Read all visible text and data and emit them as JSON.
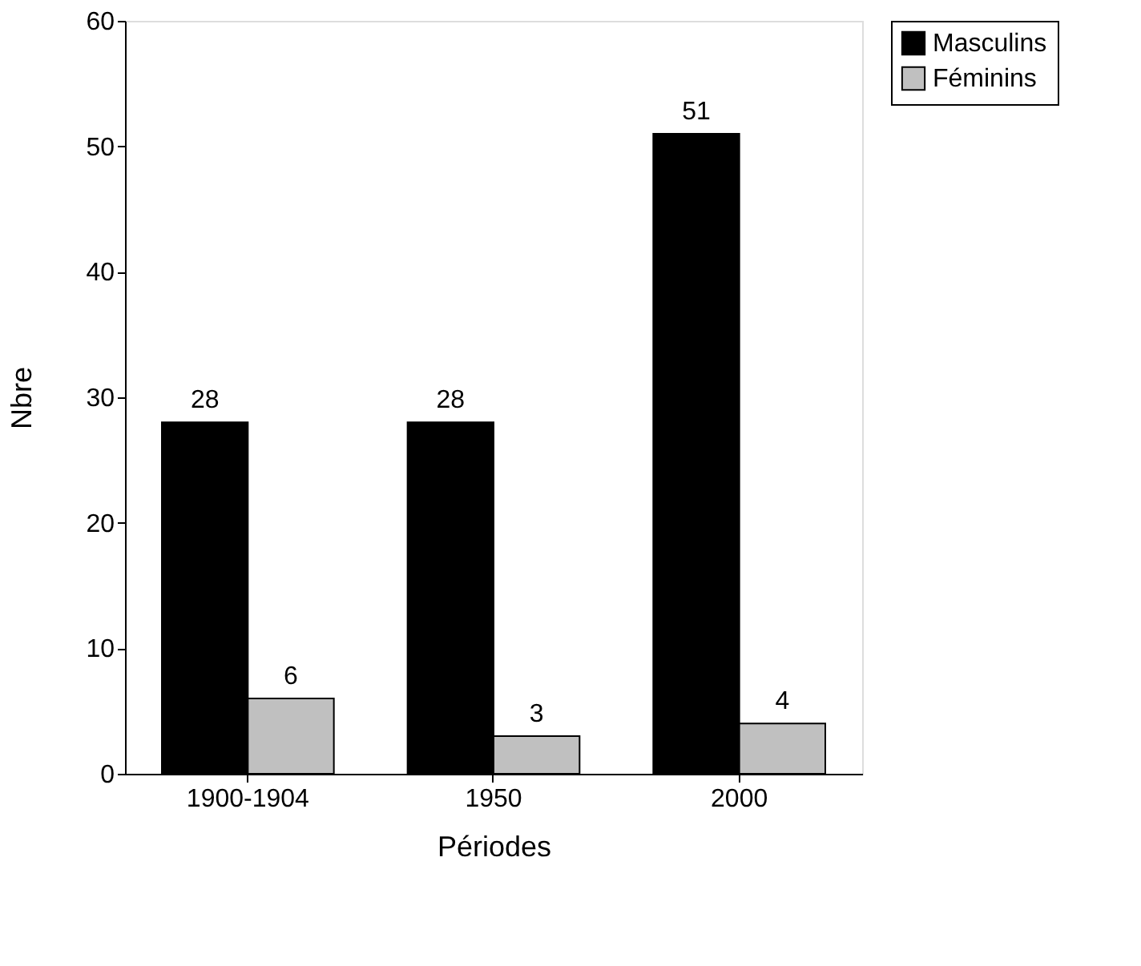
{
  "chart_data": {
    "type": "bar",
    "xlabel": "Périodes",
    "ylabel": "Nbre",
    "categories": [
      "1900-1904",
      "1950",
      "2000"
    ],
    "series": [
      {
        "name": "Masculins",
        "color": "#000000",
        "values": [
          28,
          28,
          51
        ]
      },
      {
        "name": "Féminins",
        "color": "#c0c0c0",
        "values": [
          6,
          3,
          4
        ]
      }
    ],
    "ylim": [
      0,
      60
    ],
    "yticks": [
      0,
      10,
      20,
      30,
      40,
      50,
      60
    ],
    "grid": false,
    "legend": "right",
    "data_labels": true
  }
}
